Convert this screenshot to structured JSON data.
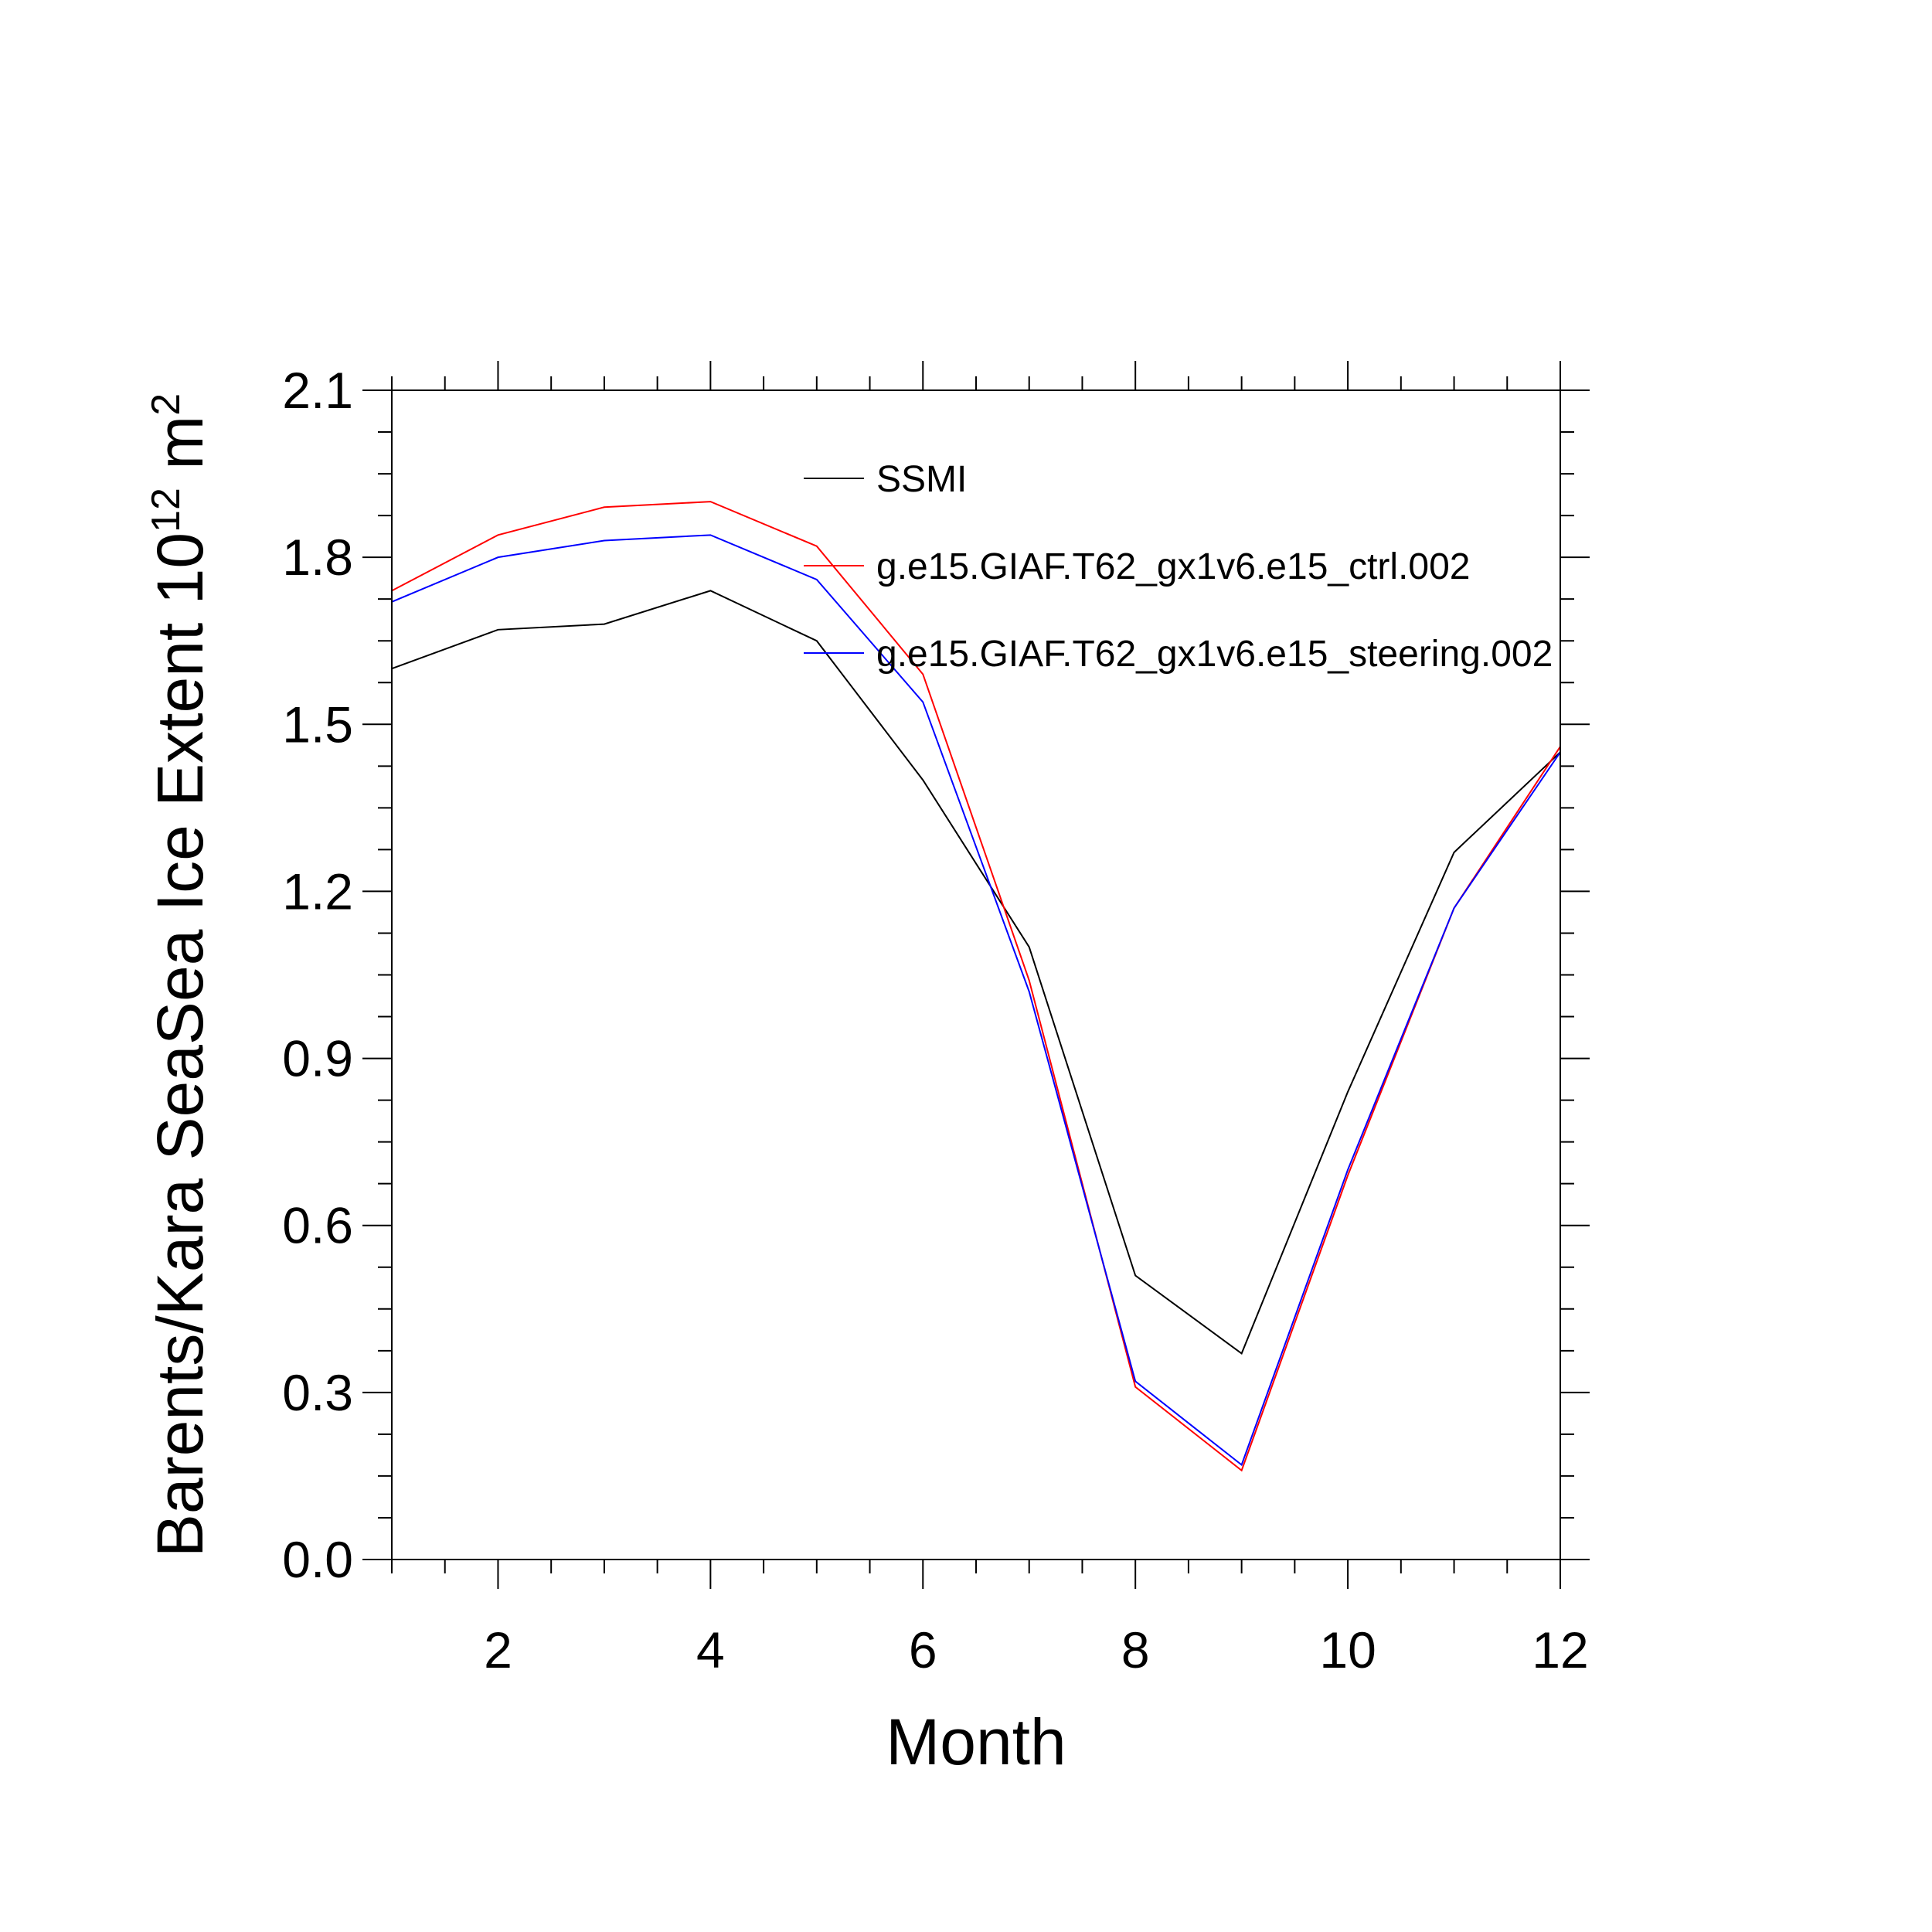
{
  "chart_data": {
    "type": "line",
    "xlabel": "Month",
    "ylabel": "Barents/Kara SeaSea Ice Extent 10",
    "ylabel_exponent": "12",
    "ylabel_unit": " m",
    "ylabel_unit_exponent": "2",
    "xlim": [
      1,
      12
    ],
    "ylim": [
      0.0,
      2.1
    ],
    "x_ticks": [
      2,
      4,
      6,
      8,
      10,
      12
    ],
    "x_tick_labels": [
      "2",
      "4",
      "6",
      "8",
      "10",
      "12"
    ],
    "y_ticks": [
      0.0,
      0.3,
      0.6,
      0.9,
      1.2,
      1.5,
      1.8,
      2.1
    ],
    "y_tick_labels": [
      "0.0",
      "0.3",
      "0.6",
      "0.9",
      "1.2",
      "1.5",
      "1.8",
      "2.1"
    ],
    "grid": false,
    "legend_placement": "top-center inside plot",
    "x": [
      1,
      2,
      3,
      4,
      5,
      6,
      7,
      8,
      9,
      10,
      11,
      12
    ],
    "series": [
      {
        "name": "SSMI",
        "color": "#000000",
        "values": [
          1.6,
          1.67,
          1.68,
          1.74,
          1.65,
          1.4,
          1.1,
          0.51,
          0.37,
          0.84,
          1.27,
          1.45
        ]
      },
      {
        "name": "g.e15.GIAF.T62_gx1v6.e15_ctrl.002",
        "color": "#ff0000",
        "values": [
          1.74,
          1.84,
          1.89,
          1.9,
          1.82,
          1.59,
          1.04,
          0.31,
          0.16,
          0.69,
          1.17,
          1.46
        ]
      },
      {
        "name": "g.e15.GIAF.T62_gx1v6.e15_steering.002",
        "color": "#0000ff",
        "values": [
          1.72,
          1.8,
          1.83,
          1.84,
          1.76,
          1.54,
          1.02,
          0.32,
          0.17,
          0.7,
          1.17,
          1.45
        ]
      }
    ]
  }
}
